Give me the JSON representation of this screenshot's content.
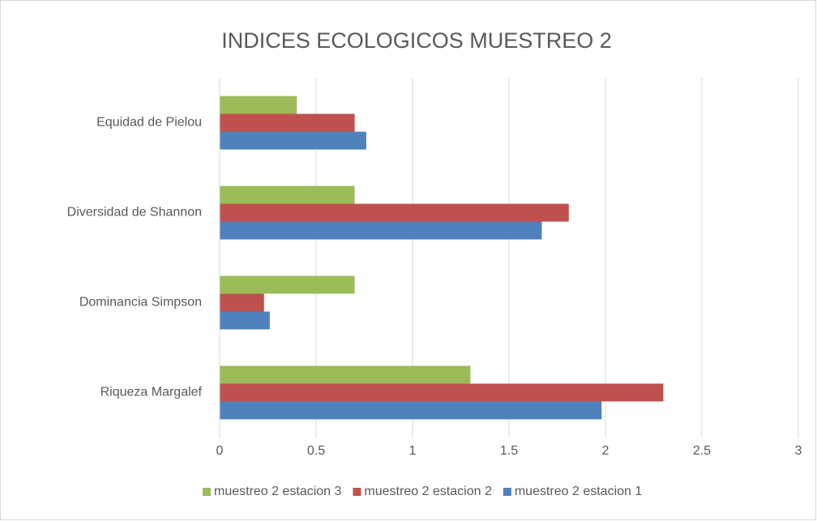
{
  "chart_data": {
    "type": "hbar",
    "title": "INDICES ECOLOGICOS MUESTREO 2",
    "categories": [
      "Riqueza Margalef",
      "Dominancia Simpson",
      "Diversidad de Shannon",
      "Equidad de Pielou"
    ],
    "series": [
      {
        "name": "muestreo 2  estacion 1",
        "color": "#4f81bd",
        "values": [
          1.98,
          0.26,
          1.67,
          0.76
        ]
      },
      {
        "name": "muestreo 2  estacion 2",
        "color": "#c0504d",
        "values": [
          2.3,
          0.23,
          1.81,
          0.7
        ]
      },
      {
        "name": "muestreo 2  estacion 3",
        "color": "#9bbb59",
        "values": [
          1.3,
          0.7,
          0.7,
          0.4
        ]
      }
    ],
    "xlim": [
      0,
      3
    ],
    "xticks": [
      0,
      0.5,
      1,
      1.5,
      2,
      2.5,
      3
    ],
    "grid": true,
    "legend": "bottom"
  }
}
